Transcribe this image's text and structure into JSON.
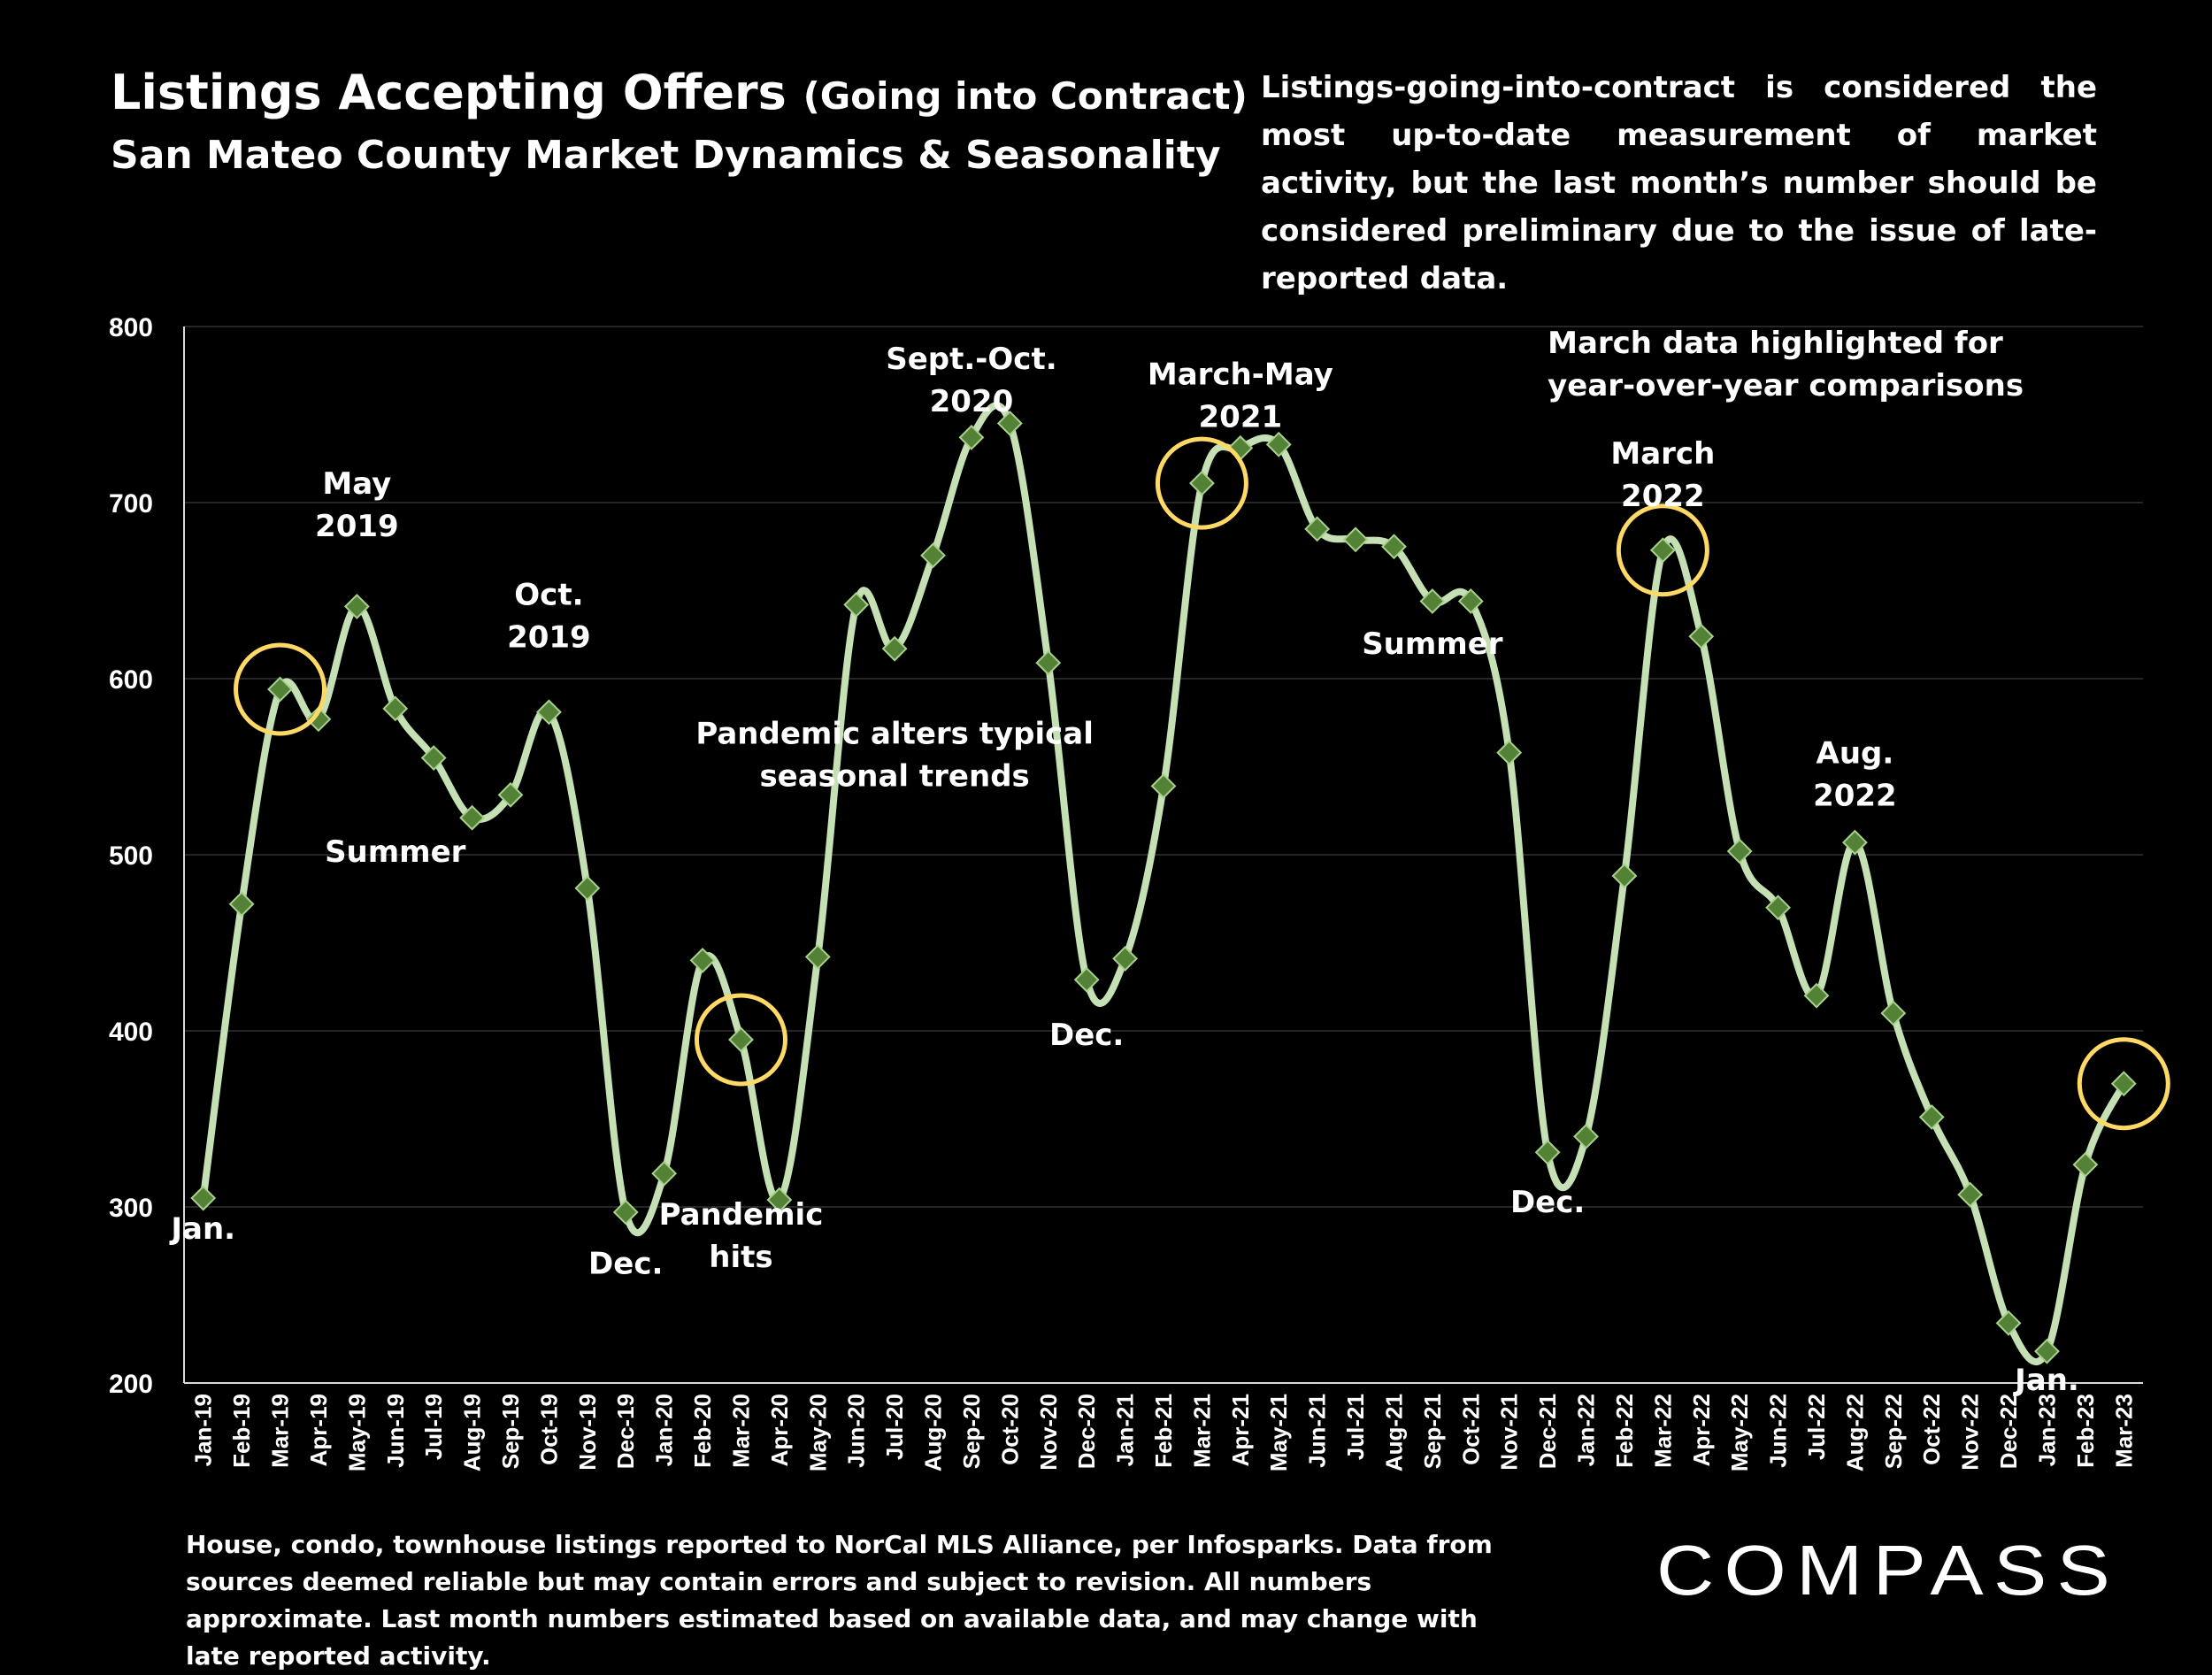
{
  "header": {
    "title": "Listings Accepting Offers",
    "title_suffix": "(Going into Contract)",
    "subtitle": "San Mateo County Market Dynamics & Seasonality"
  },
  "note": "Listings-going-into-contract is considered the most up-to-date measurement of market activity, but the last month’s number should be considered preliminary due to the issue of late-reported data.",
  "footnote": "House, condo, townhouse listings reported to NorCal MLS Alliance, per Infosparks. Data from sources deemed reliable but may contain errors and subject to revision. All numbers approximate. Last month numbers estimated based on available data, and may change with late reported activity.",
  "logo": {
    "text": "COMPASS"
  },
  "colors": {
    "background": "#000000",
    "line": "#c5e0b4",
    "marker": "#538135",
    "highlight": "#ffd966",
    "grid": "#262626"
  },
  "chart_data": {
    "type": "line",
    "title": "Listings Accepting Offers (Going into Contract)",
    "ylim": [
      200,
      800
    ],
    "yticks": [
      200,
      300,
      400,
      500,
      600,
      700,
      800
    ],
    "grid": true,
    "categories": [
      "Jan-19",
      "Feb-19",
      "Mar-19",
      "Apr-19",
      "May-19",
      "Jun-19",
      "Jul-19",
      "Aug-19",
      "Sep-19",
      "Oct-19",
      "Nov-19",
      "Dec-19",
      "Jan-20",
      "Feb-20",
      "Mar-20",
      "Apr-20",
      "May-20",
      "Jun-20",
      "Jul-20",
      "Aug-20",
      "Sep-20",
      "Oct-20",
      "Nov-20",
      "Dec-20",
      "Jan-21",
      "Feb-21",
      "Mar-21",
      "Apr-21",
      "May-21",
      "Jun-21",
      "Jul-21",
      "Aug-21",
      "Sep-21",
      "Oct-21",
      "Nov-21",
      "Dec-21",
      "Jan-22",
      "Feb-22",
      "Mar-22",
      "Apr-22",
      "May-22",
      "Jun-22",
      "Jul-22",
      "Aug-22",
      "Sep-22",
      "Oct-22",
      "Nov-22",
      "Dec-22",
      "Jan-23",
      "Feb-23",
      "Mar-23"
    ],
    "series": [
      {
        "values": [
          305,
          472,
          594,
          577,
          641,
          583,
          555,
          521,
          534,
          581,
          481,
          297,
          319,
          440,
          395,
          304,
          442,
          642,
          617,
          670,
          737,
          745,
          609,
          429,
          441,
          539,
          711,
          731,
          733,
          685,
          679,
          675,
          644,
          644,
          558,
          331,
          340,
          488,
          673,
          624,
          502,
          470,
          420,
          507,
          410,
          351,
          307,
          234,
          218,
          324,
          370
        ]
      }
    ],
    "highlighted": [
      "Mar-19",
      "Mar-20",
      "Mar-21",
      "Mar-22",
      "Mar-23"
    ],
    "annotations": [
      {
        "text": "Jan.",
        "at": "Jan-19",
        "value": 282
      },
      {
        "text": "May\n2019",
        "at": "May-19",
        "value": 705
      },
      {
        "text": "Summer",
        "at": "Jun-19",
        "value": 496
      },
      {
        "text": "Oct.\n2019",
        "at": "Oct-19",
        "value": 642
      },
      {
        "text": "Dec.",
        "at": "Dec-19",
        "value": 262
      },
      {
        "text": "Pandemic\nhits",
        "at": "Mar-20",
        "value": 290
      },
      {
        "text": "Pandemic alters typical\nseasonal trends",
        "at": "Jul-20",
        "value": 563
      },
      {
        "text": "Sept.-Oct.\n2020",
        "at": "Sep-20",
        "value": 776
      },
      {
        "text": "Dec.",
        "at": "Dec-20",
        "value": 392
      },
      {
        "text": "March-May\n2021",
        "at": "Apr-21",
        "value": 767
      },
      {
        "text": "March data highlighted for\nyear-over-year comparisons",
        "at": "Dec-21",
        "value": 785,
        "anchor": "start"
      },
      {
        "text": "Summer",
        "at": "Sep-21",
        "value": 614
      },
      {
        "text": "Dec.",
        "at": "Dec-21",
        "value": 297
      },
      {
        "text": "March\n2022",
        "at": "Mar-22",
        "value": 722
      },
      {
        "text": "Aug.\n2022",
        "at": "Aug-22",
        "value": 552
      },
      {
        "text": "Jan.",
        "at": "Jan-23",
        "value": 196
      }
    ]
  }
}
